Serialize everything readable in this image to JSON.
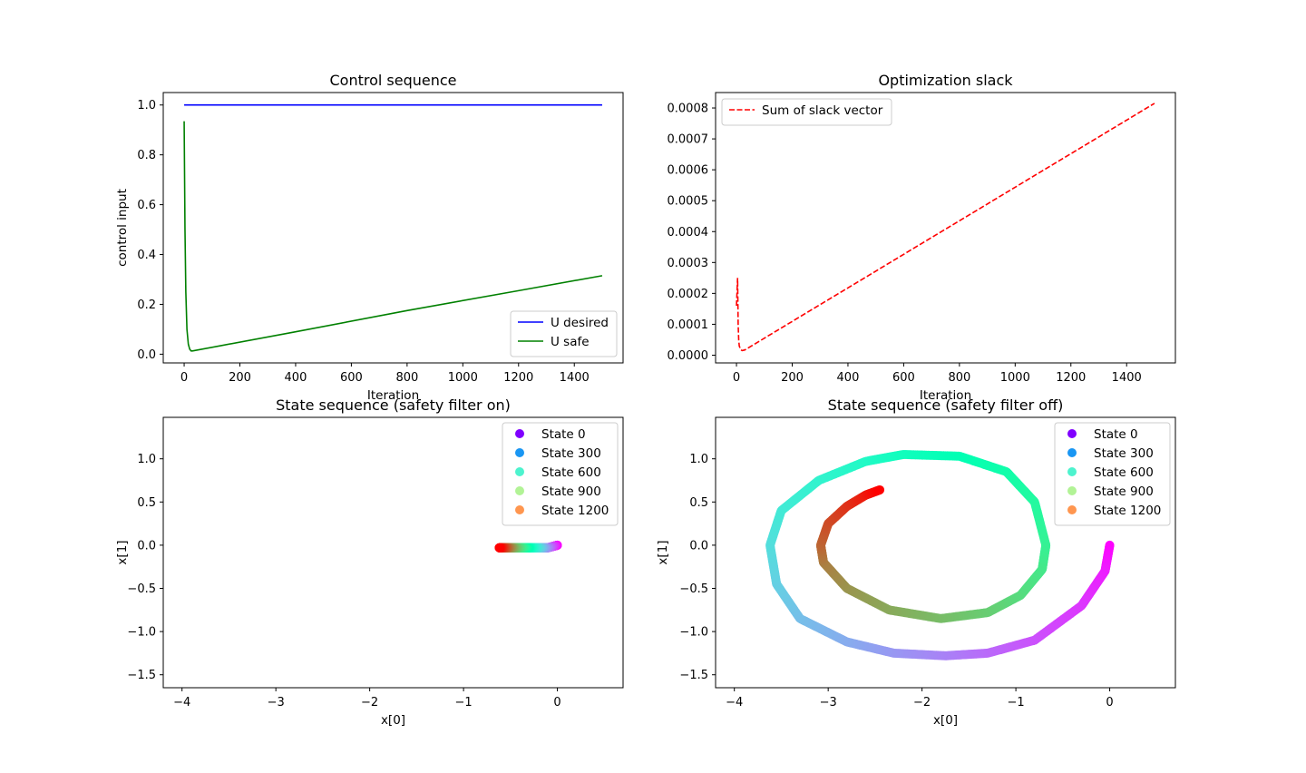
{
  "chart_data": [
    {
      "type": "line",
      "title": "Control sequence",
      "xlabel": "Iteration",
      "ylabel": "control input",
      "xlim": [
        -75,
        1575
      ],
      "ylim": [
        -0.035,
        1.05
      ],
      "xticks": [
        0,
        200,
        400,
        600,
        800,
        1000,
        1200,
        1400
      ],
      "yticks": [
        0.0,
        0.2,
        0.4,
        0.6,
        0.8,
        1.0
      ],
      "ytick_labels": [
        "0.0",
        "0.2",
        "0.4",
        "0.6",
        "0.8",
        "1.0"
      ],
      "legend": "lower right",
      "series": [
        {
          "name": "U desired",
          "color": "#0000ff",
          "dash": "solid",
          "x": [
            0,
            1500
          ],
          "y": [
            1.0,
            1.0
          ]
        },
        {
          "name": "U safe",
          "color": "#008000",
          "dash": "solid",
          "x": [
            0,
            3,
            6,
            10,
            15,
            20,
            25,
            30,
            400,
            800,
            1200,
            1500
          ],
          "y": [
            0.935,
            0.5,
            0.25,
            0.1,
            0.04,
            0.02,
            0.013,
            0.013,
            0.09,
            0.175,
            0.255,
            0.315
          ]
        }
      ]
    },
    {
      "type": "line",
      "title": "Optimization slack",
      "xlabel": "Iteration",
      "ylabel": "",
      "xlim": [
        -75,
        1575
      ],
      "ylim": [
        -2.5e-05,
        0.00085
      ],
      "xticks": [
        0,
        200,
        400,
        600,
        800,
        1000,
        1200,
        1400
      ],
      "yticks": [
        0.0,
        0.0001,
        0.0002,
        0.0003,
        0.0004,
        0.0005,
        0.0006,
        0.0007,
        0.0008
      ],
      "ytick_labels": [
        "0.0000",
        "0.0001",
        "0.0002",
        "0.0003",
        "0.0004",
        "0.0005",
        "0.0006",
        "0.0007",
        "0.0008"
      ],
      "legend": "upper left",
      "series": [
        {
          "name": "Sum of slack vector",
          "color": "#ff0000",
          "dash": "dashed",
          "x": [
            0,
            4,
            6,
            8,
            10,
            15,
            20,
            25,
            30,
            1500
          ],
          "y": [
            0.00016,
            0.00025,
            0.0001,
            5e-05,
            3e-05,
            1.8e-05,
            1.5e-05,
            1.6e-05,
            1.7e-05,
            0.000815
          ]
        }
      ]
    },
    {
      "type": "scatter",
      "title": "State sequence (safety filter on)",
      "xlabel": "x[0]",
      "ylabel": "x[1]",
      "xlim": [
        -4.2,
        0.7
      ],
      "ylim": [
        -1.65,
        1.48
      ],
      "xticks": [
        -4,
        -3,
        -2,
        -1,
        0
      ],
      "xtick_labels": [
        "−4",
        "−3",
        "−2",
        "−1",
        "0"
      ],
      "yticks": [
        -1.5,
        -1.0,
        -0.5,
        0.0,
        0.5,
        1.0
      ],
      "ytick_labels": [
        "−1.5",
        "−1.0",
        "−0.5",
        "0.0",
        "0.5",
        "1.0"
      ],
      "legend": "upper right",
      "colormap": "rainbow",
      "legend_entries": [
        {
          "label": "State 0",
          "color": "#8000ff"
        },
        {
          "label": "State 300",
          "color": "#1996f3"
        },
        {
          "label": "State 600",
          "color": "#4df3ce"
        },
        {
          "label": "State 900",
          "color": "#b2f396"
        },
        {
          "label": "State 1200",
          "color": "#ff964f"
        }
      ],
      "trajectory": {
        "n_states": 1500,
        "x_start": 0.0,
        "y_start": 0.0,
        "x_end": -0.62,
        "y_end": -0.03
      }
    },
    {
      "type": "scatter",
      "title": "State sequence (safety filter off)",
      "xlabel": "x[0]",
      "ylabel": "x[1]",
      "xlim": [
        -4.2,
        0.7
      ],
      "ylim": [
        -1.65,
        1.48
      ],
      "xticks": [
        -4,
        -3,
        -2,
        -1,
        0
      ],
      "xtick_labels": [
        "−4",
        "−3",
        "−2",
        "−1",
        "0"
      ],
      "yticks": [
        -1.5,
        -1.0,
        -0.5,
        0.0,
        0.5,
        1.0
      ],
      "ytick_labels": [
        "−1.5",
        "−1.0",
        "−0.5",
        "0.0",
        "0.5",
        "1.0"
      ],
      "legend": "upper right",
      "colormap": "rainbow",
      "legend_entries": [
        {
          "label": "State 0",
          "color": "#8000ff"
        },
        {
          "label": "State 300",
          "color": "#1996f3"
        },
        {
          "label": "State 600",
          "color": "#4df3ce"
        },
        {
          "label": "State 900",
          "color": "#b2f396"
        },
        {
          "label": "State 1200",
          "color": "#ff964f"
        }
      ],
      "trajectory": {
        "n_states": 1500,
        "x": [
          0.0,
          -0.05,
          -0.3,
          -0.8,
          -1.3,
          -1.75,
          -2.3,
          -2.8,
          -3.3,
          -3.55,
          -3.62,
          -3.5,
          -3.1,
          -2.6,
          -2.2,
          -1.6,
          -1.1,
          -0.8,
          -0.68,
          -0.72,
          -0.95,
          -1.3,
          -1.8,
          -2.35,
          -2.8,
          -3.05,
          -3.08,
          -3.0,
          -2.8,
          -2.6,
          -2.45
        ],
        "y": [
          0.0,
          -0.3,
          -0.7,
          -1.1,
          -1.25,
          -1.28,
          -1.25,
          -1.12,
          -0.85,
          -0.45,
          0.0,
          0.4,
          0.75,
          0.97,
          1.05,
          1.03,
          0.85,
          0.5,
          0.0,
          -0.28,
          -0.58,
          -0.78,
          -0.85,
          -0.75,
          -0.5,
          -0.2,
          0.0,
          0.25,
          0.45,
          0.58,
          0.64
        ]
      }
    }
  ]
}
